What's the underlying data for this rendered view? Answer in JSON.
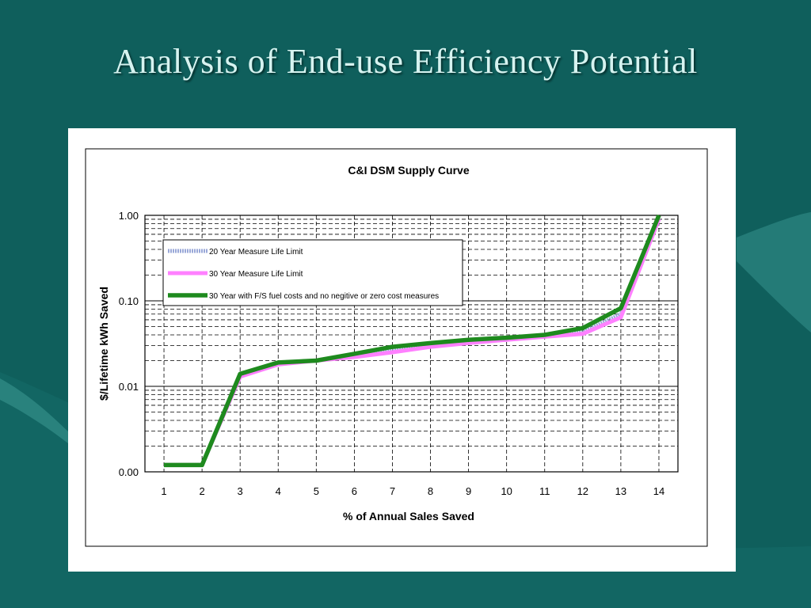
{
  "slide": {
    "title": "Analysis of End-use Efficiency Potential",
    "background_color": "#0f5f5c"
  },
  "chart_data": {
    "type": "line",
    "title": "C&I DSM Supply Curve",
    "xlabel": "% of Annual Sales Saved",
    "ylabel": "$/Lifetime kWh Saved",
    "y_scale": "log",
    "y_tick_labels": [
      "1.00",
      "0.10",
      "0.01",
      "0.00"
    ],
    "y_tick_values": [
      1.0,
      0.1,
      0.01,
      0.001
    ],
    "ylim": [
      0.001,
      1.0
    ],
    "x": [
      1,
      2,
      3,
      4,
      5,
      6,
      7,
      8,
      9,
      10,
      11,
      12,
      13,
      14
    ],
    "xlim": [
      0.5,
      14.5
    ],
    "grid": true,
    "legend_placement": "top-left",
    "series": [
      {
        "name": "20 Year Measure Life Limit",
        "color": "#9aa8d8",
        "style": "dotted",
        "values": [
          0.0012,
          0.0012,
          0.013,
          0.019,
          0.02,
          0.023,
          0.026,
          0.03,
          0.033,
          0.036,
          0.04,
          0.043,
          0.07,
          0.95
        ]
      },
      {
        "name": "30 Year Measure Life Limit",
        "color": "#ff80ff",
        "style": "solid",
        "values": [
          0.0012,
          0.0012,
          0.013,
          0.018,
          0.02,
          0.022,
          0.025,
          0.029,
          0.032,
          0.035,
          0.038,
          0.041,
          0.064,
          0.9
        ]
      },
      {
        "name": "30 Year with F/S  fuel costs and no negitive or zero cost measures",
        "color": "#1e8a1e",
        "style": "solid",
        "values": [
          0.0012,
          0.0012,
          0.014,
          0.019,
          0.02,
          0.024,
          0.029,
          0.032,
          0.035,
          0.037,
          0.04,
          0.048,
          0.082,
          1.0
        ]
      }
    ]
  }
}
